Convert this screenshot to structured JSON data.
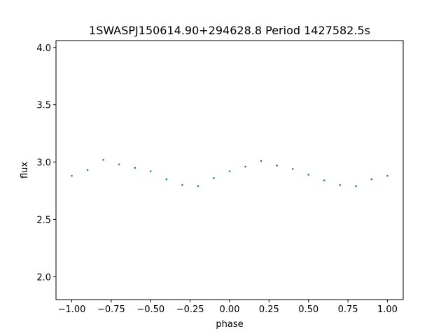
{
  "chart_data": {
    "type": "scatter",
    "title": "1SWASPJ150614.90+294628.8 Period 1427582.5s",
    "xlabel": "phase",
    "ylabel": "flux",
    "xlim": [
      -1.1,
      1.1
    ],
    "ylim": [
      1.8,
      4.06
    ],
    "x_ticks": [
      -1.0,
      -0.75,
      -0.5,
      -0.25,
      0.0,
      0.25,
      0.5,
      0.75,
      1.0
    ],
    "x_tick_labels": [
      "−1.00",
      "−0.75",
      "−0.50",
      "−0.25",
      "0.00",
      "0.25",
      "0.50",
      "0.75",
      "1.00"
    ],
    "y_ticks": [
      2.0,
      2.5,
      3.0,
      3.5,
      4.0
    ],
    "y_tick_labels": [
      "2.0",
      "2.5",
      "3.0",
      "3.5",
      "4.0"
    ],
    "grid": false,
    "legend": "none",
    "marker_color": "#1f77b4",
    "series": [
      {
        "x": [
          -1.0,
          -0.9,
          -0.8,
          -0.7,
          -0.6,
          -0.5,
          -0.4,
          -0.3,
          -0.2,
          -0.1,
          0.0,
          0.1,
          0.2,
          0.3,
          0.4,
          0.5,
          0.6,
          0.7,
          0.8,
          0.9,
          1.0
        ],
        "y": [
          2.88,
          2.93,
          3.02,
          2.98,
          2.95,
          2.92,
          2.85,
          2.8,
          2.79,
          2.86,
          2.92,
          2.96,
          3.01,
          2.97,
          2.94,
          2.89,
          2.84,
          2.8,
          2.79,
          2.85,
          2.88
        ]
      }
    ]
  }
}
